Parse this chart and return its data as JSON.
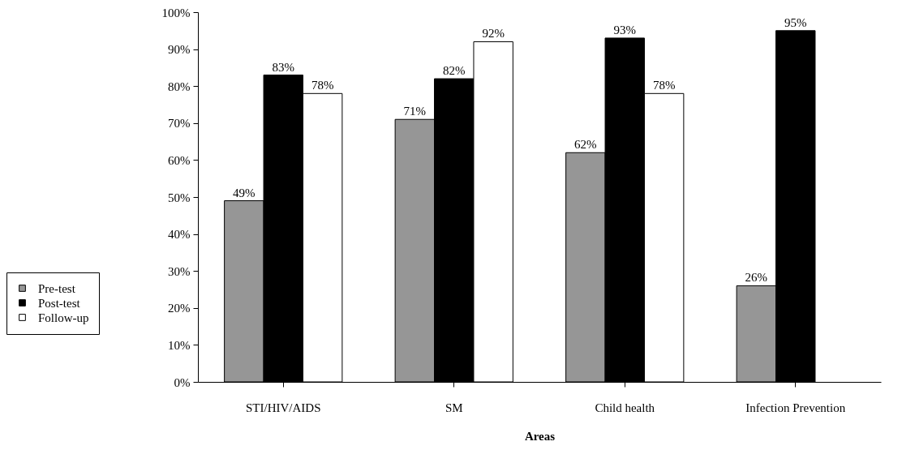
{
  "chart_data": {
    "type": "bar",
    "xlabel": "Areas",
    "categories": [
      "STI/HIV/AIDS",
      "SM",
      "Child health",
      "Infection Prevention"
    ],
    "series": [
      {
        "name": "Pre-test",
        "color": "#969696",
        "values": [
          49,
          71,
          62,
          26
        ],
        "value_labels": [
          "49%",
          "71%",
          "62%",
          "26%"
        ]
      },
      {
        "name": "Post-test",
        "color": "#000000",
        "values": [
          83,
          82,
          93,
          95
        ],
        "value_labels": [
          "83%",
          "82%",
          "93%",
          "95%"
        ]
      },
      {
        "name": "Follow-up",
        "color": "#ffffff",
        "values": [
          78,
          92,
          78,
          null
        ],
        "value_labels": [
          "78%",
          "92%",
          "78%",
          null
        ]
      }
    ],
    "ylim": [
      0,
      100
    ],
    "yticks": [
      {
        "value": 0,
        "label": "0%"
      },
      {
        "value": 10,
        "label": "10%"
      },
      {
        "value": 20,
        "label": "20%"
      },
      {
        "value": 30,
        "label": "30%"
      },
      {
        "value": 40,
        "label": "40%"
      },
      {
        "value": 50,
        "label": "50%"
      },
      {
        "value": 60,
        "label": "60%"
      },
      {
        "value": 70,
        "label": "70%"
      },
      {
        "value": 80,
        "label": "80%"
      },
      {
        "value": 90,
        "label": "90%"
      },
      {
        "value": 100,
        "label": "100%"
      }
    ],
    "grid": false,
    "legend": "bottom left"
  }
}
